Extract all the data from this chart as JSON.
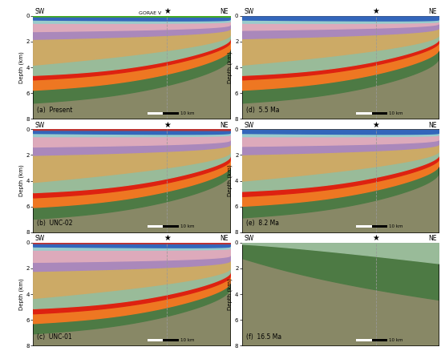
{
  "colors": {
    "bright_green": "#44aa22",
    "blue": "#3366bb",
    "light_blue_cyan": "#99cccc",
    "pink": "#ddaabb",
    "purple": "#aa88bb",
    "tan": "#ccaa66",
    "orange": "#ee7722",
    "red": "#dd2211",
    "light_green": "#99bb99",
    "dark_green": "#4d7a44",
    "gray_olive": "#888866",
    "olive_dark": "#6b7055",
    "bg": "#e8e8e0"
  },
  "panels": [
    {
      "label": "a",
      "title": "Present",
      "pidx": 0,
      "row": 0,
      "col": 0,
      "has_gorae": true
    },
    {
      "label": "b",
      "title": "UNC-02",
      "pidx": 1,
      "row": 1,
      "col": 0,
      "has_gorae": false
    },
    {
      "label": "c",
      "title": "UNC-01",
      "pidx": 2,
      "row": 2,
      "col": 0,
      "has_gorae": false
    },
    {
      "label": "d",
      "title": "5.5 Ma",
      "pidx": 3,
      "row": 0,
      "col": 1,
      "has_gorae": false
    },
    {
      "label": "e",
      "title": "8.2 Ma",
      "pidx": 4,
      "row": 1,
      "col": 1,
      "has_gorae": false
    },
    {
      "label": "f",
      "title": "16.5 Ma",
      "pidx": 5,
      "row": 2,
      "col": 1,
      "has_gorae": false
    }
  ]
}
